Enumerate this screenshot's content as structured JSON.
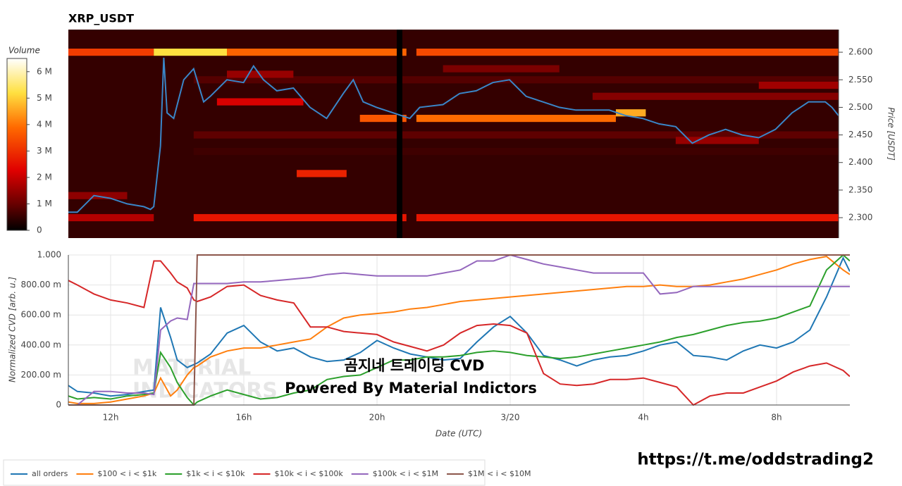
{
  "chart_data": [
    {
      "type": "heatmap",
      "title": "XRP_USDT",
      "ylabel": "Price [USDT]",
      "xlim": [
        10.73,
        33.9
      ],
      "ylim": [
        2.263,
        2.641
      ],
      "yticks": [
        {
          "value": 2.3,
          "label": "2.300"
        },
        {
          "value": 2.35,
          "label": "2.350"
        },
        {
          "value": 2.4,
          "label": "2.400"
        },
        {
          "value": 2.45,
          "label": "2.450"
        },
        {
          "value": 2.5,
          "label": "2.500"
        },
        {
          "value": 2.55,
          "label": "2.550"
        },
        {
          "value": 2.6,
          "label": "2.600"
        }
      ],
      "colorbar": {
        "title": "Volume",
        "vlim": [
          0,
          6.5
        ],
        "ticks": [
          0,
          {
            "value": 1,
            "label": "1 M"
          },
          {
            "value": 2,
            "label": "2 M"
          },
          {
            "value": 3,
            "label": "3 M"
          },
          {
            "value": 4,
            "label": "4 M"
          },
          {
            "value": 5,
            "label": "5 M"
          },
          {
            "value": 6,
            "label": "6 M"
          }
        ]
      },
      "background_volume": 0.5,
      "bands": [
        {
          "price": 2.6,
          "x": [
            10.73,
            13.3
          ],
          "volume": 3.2
        },
        {
          "price": 2.6,
          "x": [
            13.3,
            15.5
          ],
          "volume": 5.2
        },
        {
          "price": 2.6,
          "x": [
            15.5,
            20.9
          ],
          "volume": 3.8
        },
        {
          "price": 2.6,
          "x": [
            21.2,
            33.9
          ],
          "volume": 3.4
        },
        {
          "price": 2.3,
          "x": [
            10.73,
            13.3
          ],
          "volume": 1.8
        },
        {
          "price": 2.3,
          "x": [
            14.5,
            20.9
          ],
          "volume": 2.6
        },
        {
          "price": 2.3,
          "x": [
            21.2,
            33.9
          ],
          "volume": 2.6
        },
        {
          "price": 2.48,
          "x": [
            19.5,
            20.9
          ],
          "volume": 3.6
        },
        {
          "price": 2.48,
          "x": [
            21.2,
            27.2
          ],
          "volume": 3.9
        },
        {
          "price": 2.49,
          "x": [
            27.2,
            28.1
          ],
          "volume": 4.6
        },
        {
          "price": 2.51,
          "x": [
            15.2,
            17.8
          ],
          "volume": 2.2
        },
        {
          "price": 2.38,
          "x": [
            17.6,
            19.1
          ],
          "volume": 2.8
        },
        {
          "price": 2.45,
          "x": [
            14.5,
            33.9
          ],
          "volume": 0.9
        },
        {
          "price": 2.42,
          "x": [
            14.5,
            33.9
          ],
          "volume": 0.6
        },
        {
          "price": 2.55,
          "x": [
            14.5,
            33.9
          ],
          "volume": 0.8
        },
        {
          "price": 2.52,
          "x": [
            26.5,
            33.9
          ],
          "volume": 1.3
        },
        {
          "price": 2.54,
          "x": [
            31.5,
            33.9
          ],
          "volume": 1.6
        },
        {
          "price": 2.34,
          "x": [
            10.73,
            12.5
          ],
          "volume": 1.4
        },
        {
          "price": 2.57,
          "x": [
            22,
            25.5
          ],
          "volume": 1.2
        },
        {
          "price": 2.56,
          "x": [
            15.5,
            17.5
          ],
          "volume": 1.5
        },
        {
          "price": 2.44,
          "x": [
            29,
            31.5
          ],
          "volume": 1.5
        }
      ],
      "series": [
        {
          "color": "#3a86c8",
          "x": [
            10.73,
            11,
            11.5,
            12,
            12.5,
            13,
            13.2,
            13.3,
            13.5,
            13.6,
            13.7,
            13.9,
            14.2,
            14.5,
            14.8,
            15,
            15.5,
            16,
            16.3,
            16.6,
            17,
            17.5,
            18,
            18.5,
            19,
            19.3,
            19.6,
            20,
            20.5,
            21,
            21.3,
            22,
            22.5,
            23,
            23.5,
            24,
            24.5,
            25,
            25.5,
            26,
            26.5,
            27,
            27.5,
            28,
            28.5,
            29,
            29.5,
            30,
            30.5,
            31,
            31.5,
            32,
            32.5,
            33,
            33.5,
            33.7,
            33.9
          ],
          "values": [
            2.31,
            2.31,
            2.34,
            2.335,
            2.325,
            2.32,
            2.315,
            2.32,
            2.43,
            2.59,
            2.49,
            2.48,
            2.55,
            2.57,
            2.51,
            2.52,
            2.55,
            2.545,
            2.575,
            2.55,
            2.53,
            2.535,
            2.5,
            2.48,
            2.525,
            2.55,
            2.51,
            2.5,
            2.49,
            2.48,
            2.5,
            2.505,
            2.525,
            2.53,
            2.545,
            2.55,
            2.52,
            2.51,
            2.5,
            2.495,
            2.495,
            2.495,
            2.485,
            2.48,
            2.47,
            2.465,
            2.435,
            2.45,
            2.46,
            2.45,
            2.445,
            2.46,
            2.49,
            2.51,
            2.51,
            2.5,
            2.485
          ]
        }
      ]
    },
    {
      "type": "line",
      "ylabel": "Normalized CVD [arb. u.]",
      "xlabel": "Date (UTC)",
      "grid": true,
      "legend": "bottom",
      "annotations": [
        "곰지네 트레이딩 CVD",
        "Powered By Material Indictors",
        "https://t.me/oddstrading2",
        "MATERIAL",
        "INDICATORS"
      ],
      "xlim": [
        10.73,
        34.2
      ],
      "xticks": [
        {
          "value": 12,
          "label": "12h"
        },
        {
          "value": 16,
          "label": "16h"
        },
        {
          "value": 20,
          "label": "20h"
        },
        {
          "value": 24,
          "label": "3/20"
        },
        {
          "value": 28,
          "label": "4h"
        },
        {
          "value": 32,
          "label": "8h"
        }
      ],
      "ylim": [
        0,
        1000
      ],
      "yticks": [
        0,
        {
          "value": 200,
          "label": "200.00 m"
        },
        {
          "value": 400,
          "label": "400.00 m"
        },
        {
          "value": 600,
          "label": "600.00 m"
        },
        {
          "value": 800,
          "label": "800.00 m"
        },
        {
          "value": 1000,
          "label": "1.000"
        }
      ],
      "x": [
        10.73,
        11,
        11.5,
        12,
        12.5,
        13,
        13.3,
        13.5,
        13.8,
        14,
        14.3,
        14.5,
        14.6,
        15,
        15.5,
        16,
        16.5,
        17,
        17.5,
        18,
        18.5,
        19,
        19.5,
        20,
        20.5,
        21,
        21.5,
        22,
        22.5,
        23,
        23.5,
        24,
        24.5,
        25,
        25.5,
        26,
        26.5,
        27,
        27.5,
        28,
        28.5,
        29,
        29.5,
        30,
        30.5,
        31,
        31.5,
        32,
        32.5,
        33,
        33.5,
        34,
        34.2
      ],
      "series": [
        {
          "name": "all orders",
          "color": "#1f77b4",
          "values": [
            130,
            90,
            80,
            60,
            70,
            90,
            100,
            650,
            450,
            300,
            250,
            270,
            280,
            340,
            480,
            530,
            420,
            360,
            380,
            320,
            290,
            300,
            350,
            430,
            380,
            340,
            320,
            300,
            310,
            420,
            520,
            590,
            480,
            330,
            300,
            260,
            300,
            320,
            330,
            360,
            400,
            420,
            330,
            320,
            300,
            360,
            400,
            380,
            420,
            500,
            720,
            980,
            890
          ]
        },
        {
          "name": "$100 < i < $1k",
          "color": "#ff7f0e",
          "values": [
            20,
            10,
            10,
            20,
            40,
            60,
            80,
            180,
            60,
            100,
            200,
            250,
            260,
            320,
            360,
            380,
            380,
            400,
            420,
            440,
            520,
            580,
            600,
            610,
            620,
            640,
            650,
            670,
            690,
            700,
            710,
            720,
            730,
            740,
            750,
            760,
            770,
            780,
            790,
            790,
            800,
            790,
            790,
            800,
            820,
            840,
            870,
            900,
            940,
            970,
            990,
            900,
            870
          ]
        },
        {
          "name": "$1k < i < $10k",
          "color": "#2ca02c",
          "values": [
            60,
            40,
            50,
            40,
            60,
            70,
            80,
            350,
            250,
            150,
            50,
            0,
            20,
            60,
            100,
            70,
            40,
            50,
            80,
            100,
            170,
            190,
            200,
            250,
            300,
            300,
            320,
            320,
            330,
            350,
            360,
            350,
            330,
            320,
            310,
            320,
            340,
            360,
            380,
            400,
            420,
            450,
            470,
            500,
            530,
            550,
            560,
            580,
            620,
            660,
            900,
            1000,
            960
          ]
        },
        {
          "name": "$10k < i < $100k",
          "color": "#d62728",
          "values": [
            830,
            800,
            740,
            700,
            680,
            650,
            960,
            960,
            880,
            820,
            780,
            700,
            690,
            720,
            790,
            800,
            730,
            700,
            680,
            520,
            520,
            490,
            480,
            470,
            420,
            390,
            360,
            400,
            480,
            530,
            540,
            530,
            480,
            210,
            140,
            130,
            140,
            170,
            170,
            180,
            150,
            120,
            0,
            60,
            80,
            80,
            120,
            160,
            220,
            260,
            280,
            230,
            190
          ]
        },
        {
          "name": "$100k < i < $1M",
          "color": "#9467bd",
          "values": [
            0,
            0,
            90,
            90,
            80,
            80,
            70,
            500,
            560,
            580,
            570,
            810,
            810,
            810,
            810,
            820,
            820,
            830,
            840,
            850,
            870,
            880,
            870,
            860,
            860,
            860,
            860,
            880,
            900,
            960,
            960,
            1000,
            970,
            940,
            920,
            900,
            880,
            880,
            880,
            880,
            740,
            750,
            790,
            790,
            790,
            790,
            790,
            790,
            790,
            790,
            790,
            790,
            790
          ]
        },
        {
          "name": "$1M < i < $10M",
          "color": "#8c564b",
          "values": [
            0,
            0,
            0,
            0,
            0,
            0,
            0,
            0,
            0,
            0,
            0,
            0,
            1000,
            1000,
            1000,
            1000,
            1000,
            1000,
            1000,
            1000,
            1000,
            1000,
            1000,
            1000,
            1000,
            1000,
            1000,
            1000,
            1000,
            1000,
            1000,
            1000,
            1000,
            1000,
            1000,
            1000,
            1000,
            1000,
            1000,
            1000,
            1000,
            1000,
            1000,
            1000,
            1000,
            1000,
            1000,
            1000,
            1000,
            1000,
            1000,
            1000,
            1000
          ]
        }
      ]
    }
  ]
}
